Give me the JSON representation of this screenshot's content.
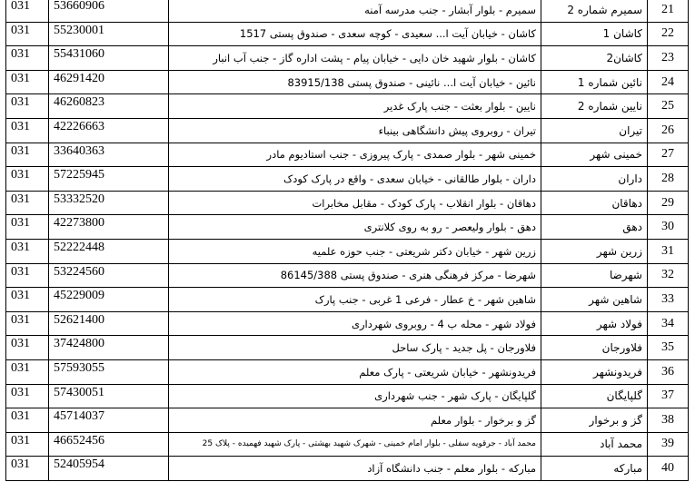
{
  "table": {
    "rows": [
      [
        "21",
        "سمیرم شماره 2",
        "سمیرم - بلوار آبشار - جنب مدرسه آمنه",
        "53660906",
        "031"
      ],
      [
        "22",
        "کاشان 1",
        "کاشان - خیابان آیت ا... سعیدی - کوچه سعدی - صندوق پستی 1517",
        "55230001",
        "031"
      ],
      [
        "23",
        "کاشان2",
        "کاشان - بلوار شهید خان دایی - خیابان پیام - پشت اداره گاز - جنب آب انبار",
        "55431060",
        "031"
      ],
      [
        "24",
        "نائین شماره 1",
        "نائین - خیابان آیت ا... نائینی - صندوق پستی 83915/138",
        "46291420",
        "031"
      ],
      [
        "25",
        "نایین شماره 2",
        "نایین - بلوار بعثت - جنب پارک غدیر",
        "46260823",
        "031"
      ],
      [
        "26",
        "تیران",
        "تیران - روبروی پیش دانشگاهی بینباء",
        "42226663",
        "031"
      ],
      [
        "27",
        "خمینی شهر",
        "خمینی شهر - بلوار صمدی - پارک پیروزی - جنب استادیوم مادر",
        "33640363",
        "031"
      ],
      [
        "28",
        "داران",
        "داران - بلوار طالقانی - خیابان سعدی - واقع در پارک کودک",
        "57225945",
        "031"
      ],
      [
        "29",
        "دهاقان",
        "دهاقان - بلوار انقلاب - پارک کودک - مقابل مخابرات",
        "53332520",
        "031"
      ],
      [
        "30",
        "دهق",
        "دهق - بلوار ولیعصر - رو به روی کلانتری",
        "42273800",
        "031"
      ],
      [
        "31",
        "زرین شهر",
        "زرین شهر - خیابان دکتر شریعتی - جنب حوزه علمیه",
        "52222448",
        "031"
      ],
      [
        "32",
        "شهرضا",
        "شهرضا - مرکز فرهنگی هنری - صندوق پستی 86145/388",
        "53224560",
        "031"
      ],
      [
        "33",
        "شاهین شهر",
        "شاهین شهر - خ عطار - فرعی 1 غربی - جنب پارک",
        "45229009",
        "031"
      ],
      [
        "34",
        "فولاد شهر",
        "فولاد شهر - محله ب 4 - روبروی شهرداری",
        "52621400",
        "031"
      ],
      [
        "35",
        "فلاورجان",
        "فلاورجان - پل جدید - پارک ساحل",
        "37424800",
        "031"
      ],
      [
        "36",
        "فریدونشهر",
        "فریدونشهر - خیابان شریعتی - پارک معلم",
        "57593055",
        "031"
      ],
      [
        "37",
        "گلپایگان",
        "گلپایگان - پارک شهر - جنب شهرداری",
        "57430051",
        "031"
      ],
      [
        "38",
        "گز و برخوار",
        "گز و برخوار - بلوار معلم",
        "45714037",
        "031"
      ],
      [
        "39",
        "محمد آباد",
        "محمد آباد - جرقویه سفلی - بلوار امام خمینی - شهرک شهید بهشتی - پارک شهید فهمیده - پلاک 25",
        "46652456",
        "031"
      ],
      [
        "40",
        "مبارکه",
        "مبارکه - بلوار معلم - جنب دانشگاه آزاد",
        "52405954",
        "031"
      ]
    ]
  }
}
